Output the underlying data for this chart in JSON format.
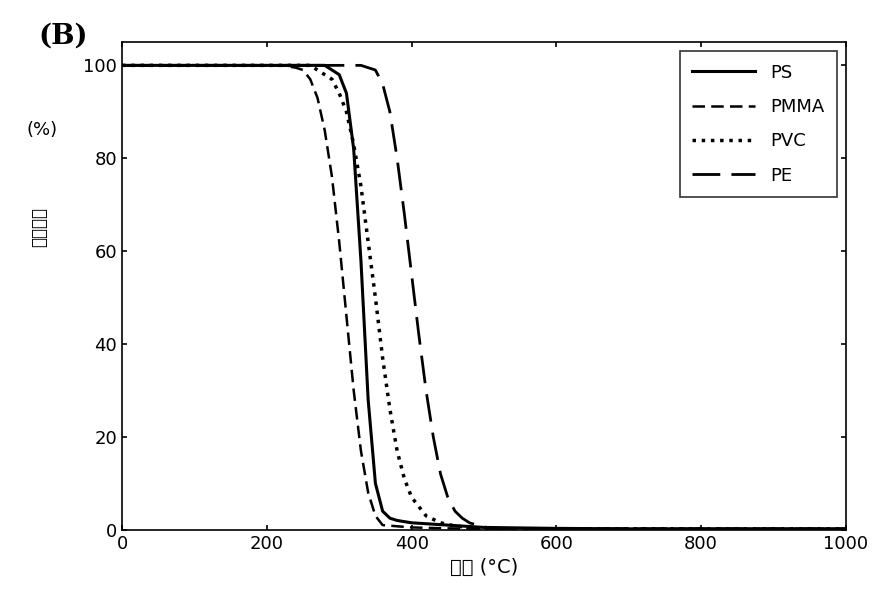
{
  "xlim": [
    0,
    1000
  ],
  "ylim": [
    0,
    105
  ],
  "xticks": [
    0,
    200,
    400,
    600,
    800,
    1000
  ],
  "yticks": [
    0,
    20,
    40,
    60,
    80,
    100
  ],
  "legend_entries": [
    "PS",
    "PMMA",
    "PVC",
    "PE"
  ],
  "background_color": "#ffffff",
  "line_color": "#000000",
  "PS": {
    "x": [
      0,
      100,
      200,
      260,
      270,
      280,
      290,
      300,
      310,
      320,
      330,
      340,
      350,
      360,
      370,
      380,
      400,
      450,
      500,
      600,
      700,
      800,
      900,
      1000
    ],
    "y": [
      100,
      100,
      100,
      100,
      100,
      100,
      99,
      98,
      94,
      82,
      58,
      28,
      10,
      4,
      2.5,
      2,
      1.5,
      1,
      0.5,
      0.3,
      0.2,
      0.2,
      0.2,
      0.2
    ],
    "linestyle": "solid",
    "linewidth": 2.2
  },
  "PMMA": {
    "x": [
      0,
      100,
      150,
      200,
      220,
      240,
      250,
      260,
      270,
      280,
      290,
      300,
      310,
      320,
      330,
      340,
      350,
      360,
      400,
      450,
      500,
      600,
      700,
      800,
      1000
    ],
    "y": [
      100,
      100,
      100,
      100,
      100,
      99.5,
      99,
      97,
      93,
      86,
      76,
      62,
      46,
      30,
      17,
      8,
      3,
      1,
      0.5,
      0.3,
      0.2,
      0.2,
      0.2,
      0.2,
      0.2
    ],
    "linestyle": "dashed",
    "linewidth": 1.8,
    "dashes": [
      5,
      2.5
    ]
  },
  "PVC": {
    "x": [
      0,
      100,
      200,
      230,
      250,
      260,
      270,
      280,
      290,
      300,
      310,
      320,
      330,
      340,
      350,
      360,
      370,
      380,
      390,
      400,
      420,
      440,
      460,
      480,
      500,
      520,
      540,
      600,
      700,
      800,
      1000
    ],
    "y": [
      100,
      100,
      100,
      100,
      100,
      100,
      99,
      98,
      97,
      94,
      90,
      83,
      74,
      62,
      50,
      37,
      26,
      17,
      11,
      7,
      3,
      1.5,
      0.8,
      0.5,
      0.3,
      0.2,
      0.2,
      0.2,
      0.2,
      0.2,
      0.2
    ],
    "linestyle": "dotted",
    "linewidth": 2.5
  },
  "PE": {
    "x": [
      0,
      100,
      200,
      280,
      300,
      310,
      320,
      330,
      340,
      350,
      360,
      370,
      380,
      390,
      400,
      410,
      420,
      430,
      440,
      450,
      460,
      470,
      480,
      490,
      500,
      510,
      520,
      530,
      550,
      600,
      700,
      800,
      1000
    ],
    "y": [
      100,
      100,
      100,
      100,
      100,
      100,
      100,
      100,
      99.5,
      99,
      96,
      90,
      80,
      68,
      55,
      42,
      30,
      20,
      12,
      7,
      4,
      2.5,
      1.5,
      1,
      0.6,
      0.4,
      0.3,
      0.2,
      0.2,
      0.2,
      0.2,
      0.2,
      0.2
    ],
    "linestyle": "dashed",
    "linewidth": 2.0,
    "dashes": [
      10,
      4
    ]
  },
  "xlabel_cn": "温度",
  "xlabel_unit": " (°C)",
  "ylabel_cn1": "(%)",
  "ylabel_cn2": "质量分数",
  "panel_label": "(B)"
}
